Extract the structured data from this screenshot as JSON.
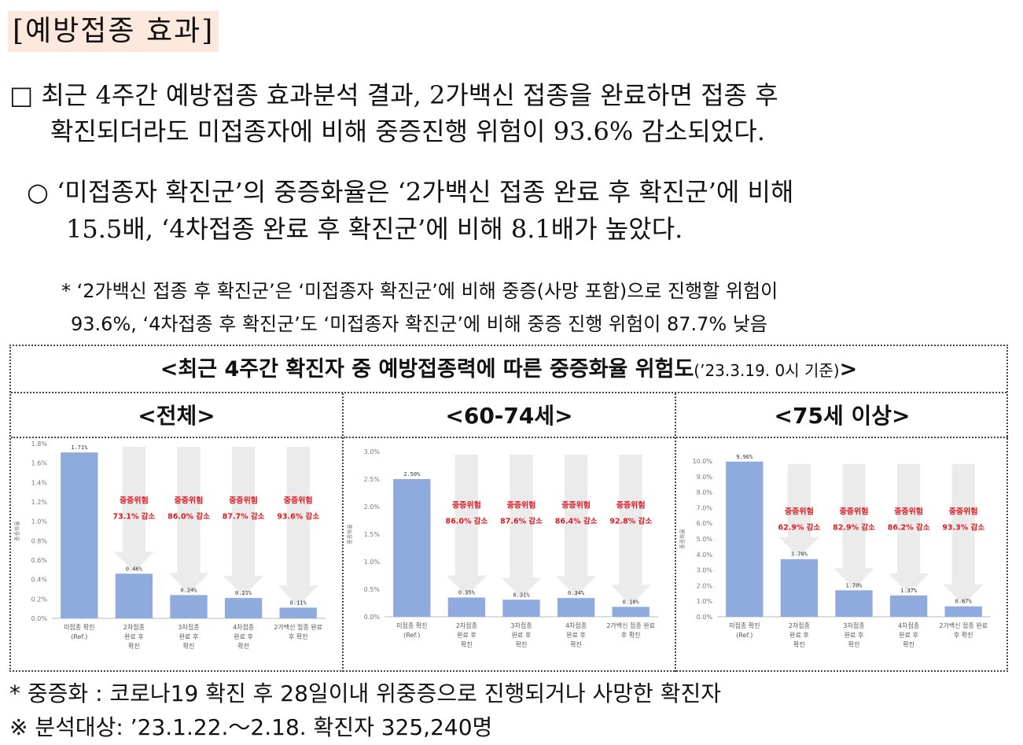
{
  "heading": "[예방접종 효과]",
  "para1": {
    "line1": "□  최근 4주간 예방접종 효과분석 결과, 2가백신 접종을 완료하면 접종 후",
    "line2": "확진되더라도 미접종자에 비해 중증진행 위험이 93.6% 감소되었다."
  },
  "para2": {
    "line1": "○ ‘미접종자 확진군’의 중증화율은 ‘2가백신 접종 완료 후 확진군’에 비해",
    "line2": "15.5배, ‘4차접종 완료 후 확진군’에 비해 8.1배가 높았다."
  },
  "note": {
    "line1": "* ‘2가백신 접종 후 확진군’은 ‘미접종자 확진군’에 비해 중증(사망 포함)으로 진행할 위험이",
    "line2": "93.6%, ‘4차접종 후 확진군’도 ‘미접종자 확진군’에 비해 중증 진행 위험이 87.7% 낮음"
  },
  "figure": {
    "title": "<최근 4주간 확진자 중 예방접종력에 따른 중증화율 위험도",
    "title_small": "(’23.3.19. 0시 기준)",
    "title_end": ">"
  },
  "chart_data": [
    {
      "type": "bar",
      "heading": "<전체>",
      "ylabel": "중증화율",
      "ylim": [
        0,
        1.8
      ],
      "yticks": [
        "0.0%",
        "0.2%",
        "0.4%",
        "0.6%",
        "0.8%",
        "1.0%",
        "1.2%",
        "1.4%",
        "1.6%",
        "1.8%"
      ],
      "categories": [
        "미접종 확진\n(Ref.)",
        "2차접종\n완료 후\n확진",
        "3차접종\n완료 후\n확진",
        "4차접종\n완료 후\n확진",
        "2가백신 접종 완료\n후 확진"
      ],
      "values": [
        1.71,
        0.46,
        0.24,
        0.21,
        0.11
      ],
      "value_labels": [
        "1.71%",
        "0.46%",
        "0.24%",
        "0.21%",
        "0.11%"
      ],
      "risk_label": "중증위험",
      "reductions": [
        "",
        "73.1% 감소",
        "86.0% 감소",
        "87.7% 감소",
        "93.6% 감소"
      ]
    },
    {
      "type": "bar",
      "heading": "<60-74세>",
      "ylabel": "중증화율",
      "ylim": [
        0,
        3.0
      ],
      "yticks": [
        "0.0%",
        "0.5%",
        "1.0%",
        "1.5%",
        "2.0%",
        "2.5%",
        "3.0%"
      ],
      "categories": [
        "미접종 확진\n(Ref.)",
        "2차접종\n완료 후\n확진",
        "3차접종\n완료 후\n확진",
        "4차접종\n완료 후\n확진",
        "2가백신 접종 완료\n후 확진"
      ],
      "values": [
        2.5,
        0.35,
        0.31,
        0.34,
        0.18
      ],
      "value_labels": [
        "2.50%",
        "0.35%",
        "0.31%",
        "0.34%",
        "0.18%"
      ],
      "risk_label": "중증위험",
      "reductions": [
        "",
        "86.0% 감소",
        "87.6% 감소",
        "86.4% 감소",
        "92.8% 감소"
      ]
    },
    {
      "type": "bar",
      "heading": "<75세 이상>",
      "ylabel": "중증화율",
      "ylim": [
        0,
        10.0
      ],
      "yticks": [
        "0.0%",
        "1.0%",
        "2.0%",
        "3.0%",
        "4.0%",
        "5.0%",
        "6.0%",
        "7.0%",
        "8.0%",
        "9.0%",
        "10.0%"
      ],
      "categories": [
        "미접종 확진\n(Ref.)",
        "2차접종\n완료 후\n확진",
        "3차접종\n완료 후\n확진",
        "4차접종\n완료 후\n확진",
        "2가백신 접종 완료\n후 확진"
      ],
      "values": [
        9.96,
        3.7,
        1.7,
        1.37,
        0.67
      ],
      "value_labels": [
        "9.96%",
        "3.70%",
        "1.70%",
        "1.37%",
        "0.67%"
      ],
      "risk_label": "중증위험",
      "reductions": [
        "",
        "62.9% 감소",
        "82.9% 감소",
        "86.2% 감소",
        "93.3% 감소"
      ]
    }
  ],
  "footnotes": {
    "f1": "* 중증화 : 코로나19 확진 후 28일이내 위중증으로 진행되거나 사망한 확진자",
    "f2": "※  분석대상: ’23.1.22.～2.18. 확진자 325,240명"
  },
  "colors": {
    "bar": "#8faadc",
    "arrow": "#ebebeb",
    "reduction": "#e0191f",
    "heading_bg": "#fce8dc"
  }
}
